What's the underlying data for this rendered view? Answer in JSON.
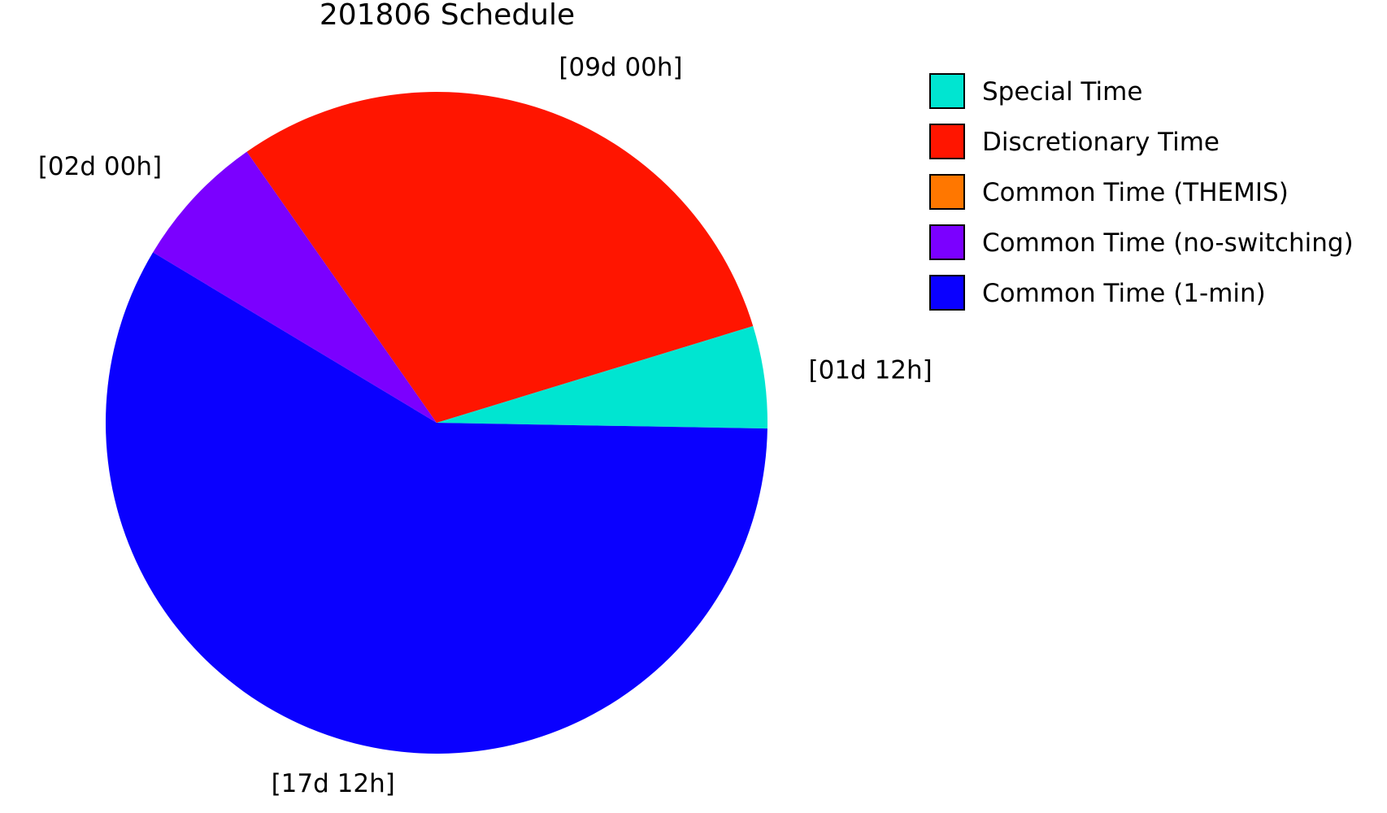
{
  "chart_data": {
    "type": "pie",
    "title": "201806 Schedule",
    "unit": "days",
    "legend_placement": "right",
    "slices": [
      {
        "name": "Special Time",
        "value": 1.5,
        "label": "[01d 12h]",
        "color": "#00e5d1"
      },
      {
        "name": "Discretionary Time",
        "value": 9.0,
        "label": "[09d 00h]",
        "color": "#ff1500"
      },
      {
        "name": "Common Time (THEMIS)",
        "value": 0,
        "label": "",
        "color": "#ff7700"
      },
      {
        "name": "Common Time (no-switching)",
        "value": 2.0,
        "label": "[02d 00h]",
        "color": "#7b00ff"
      },
      {
        "name": "Common Time (1-min)",
        "value": 17.5,
        "label": "[17d 12h]",
        "color": "#0a00ff"
      }
    ]
  }
}
